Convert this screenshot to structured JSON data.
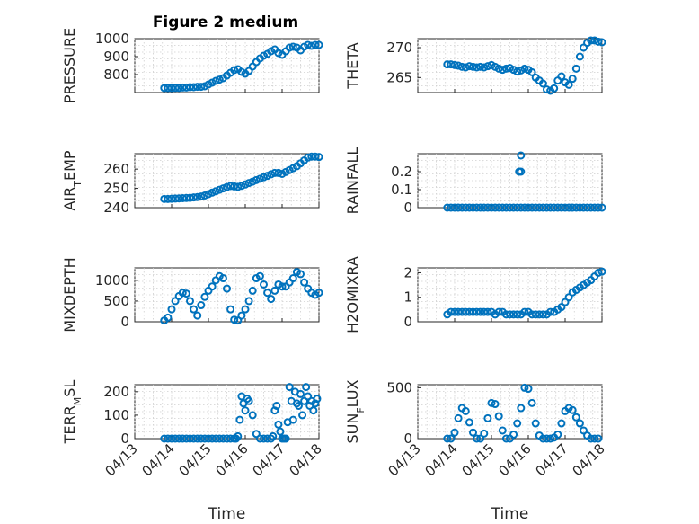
{
  "figure_title": "Figure 2 medium",
  "colors": {
    "marker": "#0072BD",
    "axis": "#262626",
    "grid": "#cfcfcf"
  },
  "chart_data": [
    {
      "id": "pressure",
      "type": "scatter",
      "ylabel": "PRESSURE",
      "ylabel_sub": "",
      "ylim": [
        700,
        1000
      ],
      "yticks": [
        800,
        900,
        1000
      ],
      "yticklabels": [
        "800",
        "900",
        "1000"
      ],
      "xlim": [
        0,
        5
      ],
      "xticks": [
        0,
        1,
        2,
        3,
        4,
        5
      ],
      "xticklabels": [],
      "x": [
        0.8,
        0.9,
        1.0,
        1.1,
        1.2,
        1.3,
        1.4,
        1.5,
        1.6,
        1.7,
        1.8,
        1.9,
        2.0,
        2.1,
        2.2,
        2.3,
        2.4,
        2.5,
        2.6,
        2.7,
        2.8,
        2.9,
        3.0,
        3.1,
        3.2,
        3.3,
        3.4,
        3.5,
        3.6,
        3.7,
        3.8,
        3.9,
        4.0,
        4.1,
        4.2,
        4.3,
        4.4,
        4.5,
        4.6,
        4.7,
        4.8,
        4.9,
        5.0
      ],
      "values": [
        725,
        725,
        725,
        726,
        726,
        728,
        728,
        730,
        730,
        732,
        732,
        735,
        745,
        755,
        765,
        772,
        780,
        795,
        810,
        825,
        830,
        815,
        805,
        820,
        845,
        870,
        890,
        905,
        915,
        930,
        940,
        920,
        910,
        930,
        950,
        955,
        950,
        935,
        955,
        965,
        960,
        965,
        965
      ]
    },
    {
      "id": "theta",
      "type": "scatter",
      "ylabel": "THETA",
      "ylabel_sub": "",
      "ylim": [
        262.5,
        271.5
      ],
      "yticks": [
        265,
        270
      ],
      "yticklabels": [
        "265",
        "270"
      ],
      "xlim": [
        0,
        5
      ],
      "xticks": [
        0,
        1,
        2,
        3,
        4,
        5
      ],
      "xticklabels": [],
      "x": [
        0.8,
        0.9,
        1.0,
        1.1,
        1.2,
        1.3,
        1.4,
        1.5,
        1.6,
        1.7,
        1.8,
        1.9,
        2.0,
        2.1,
        2.2,
        2.3,
        2.4,
        2.5,
        2.6,
        2.7,
        2.8,
        2.9,
        3.0,
        3.1,
        3.2,
        3.3,
        3.4,
        3.5,
        3.6,
        3.7,
        3.8,
        3.9,
        4.0,
        4.1,
        4.2,
        4.3,
        4.4,
        4.5,
        4.6,
        4.7,
        4.8,
        4.9,
        5.0
      ],
      "values": [
        267.2,
        267.2,
        267.1,
        267.0,
        266.8,
        266.7,
        266.9,
        266.8,
        266.7,
        266.8,
        266.7,
        266.9,
        267.1,
        266.8,
        266.5,
        266.3,
        266.5,
        266.6,
        266.3,
        266.0,
        266.2,
        266.5,
        266.3,
        265.9,
        265.0,
        264.5,
        264.0,
        263.0,
        262.8,
        263.2,
        264.5,
        265.2,
        264.2,
        263.8,
        264.8,
        266.5,
        268.5,
        270.0,
        270.8,
        271.2,
        271.2,
        271.0,
        270.9
      ]
    },
    {
      "id": "air_temp",
      "type": "scatter",
      "ylabel": "AIR",
      "ylabel_sub": "T",
      "ylabel_rest": "EMP",
      "ylim": [
        240,
        268
      ],
      "yticks": [
        240,
        250,
        260
      ],
      "yticklabels": [
        "240",
        "250",
        "260"
      ],
      "xlim": [
        0,
        5
      ],
      "xticks": [
        0,
        1,
        2,
        3,
        4,
        5
      ],
      "xticklabels": [],
      "x": [
        0.8,
        0.9,
        1.0,
        1.1,
        1.2,
        1.3,
        1.4,
        1.5,
        1.6,
        1.7,
        1.8,
        1.9,
        2.0,
        2.1,
        2.2,
        2.3,
        2.4,
        2.5,
        2.6,
        2.7,
        2.8,
        2.9,
        3.0,
        3.1,
        3.2,
        3.3,
        3.4,
        3.5,
        3.6,
        3.7,
        3.8,
        3.9,
        4.0,
        4.1,
        4.2,
        4.3,
        4.4,
        4.5,
        4.6,
        4.7,
        4.8,
        4.9,
        5.0
      ],
      "values": [
        244.5,
        244.5,
        244.6,
        244.7,
        244.8,
        244.9,
        245.0,
        245.1,
        245.3,
        245.5,
        245.8,
        246.3,
        247.0,
        247.8,
        248.5,
        249.3,
        250.0,
        250.7,
        251.2,
        251.0,
        250.8,
        251.3,
        252.0,
        252.8,
        253.5,
        254.3,
        255.0,
        255.8,
        256.5,
        257.3,
        258.0,
        258.0,
        257.5,
        258.5,
        259.5,
        260.5,
        261.5,
        263.0,
        264.5,
        266.0,
        266.5,
        266.5,
        266.3
      ]
    },
    {
      "id": "rainfall",
      "type": "scatter",
      "ylabel": "RAINFALL",
      "ylabel_sub": "",
      "ylim": [
        0,
        0.3
      ],
      "yticks": [
        0,
        0.1,
        0.2
      ],
      "yticklabels": [
        "0",
        "0.1",
        "0.2"
      ],
      "xlim": [
        0,
        5
      ],
      "xticks": [
        0,
        1,
        2,
        3,
        4,
        5
      ],
      "xticklabels": [],
      "x": [
        0.8,
        0.9,
        1.0,
        1.1,
        1.2,
        1.3,
        1.4,
        1.5,
        1.6,
        1.7,
        1.8,
        1.9,
        2.0,
        2.1,
        2.2,
        2.3,
        2.4,
        2.5,
        2.6,
        2.7,
        2.75,
        2.8,
        2.8,
        2.8,
        2.9,
        3.0,
        3.1,
        3.2,
        3.3,
        3.4,
        3.5,
        3.6,
        3.7,
        3.8,
        3.9,
        4.0,
        4.1,
        4.2,
        4.3,
        4.4,
        4.5,
        4.6,
        4.7,
        4.8,
        4.9,
        5.0
      ],
      "values": [
        0,
        0,
        0,
        0,
        0,
        0,
        0,
        0,
        0,
        0,
        0,
        0,
        0,
        0,
        0,
        0,
        0,
        0,
        0,
        0,
        0.2,
        0.2,
        0.29,
        0,
        0,
        0,
        0,
        0,
        0,
        0,
        0,
        0,
        0,
        0,
        0,
        0,
        0,
        0,
        0,
        0,
        0,
        0,
        0,
        0,
        0,
        0
      ]
    },
    {
      "id": "mixdepth",
      "type": "scatter",
      "ylabel": "MIXDEPTH",
      "ylabel_sub": "",
      "ylim": [
        0,
        1300
      ],
      "yticks": [
        0,
        500,
        1000
      ],
      "yticklabels": [
        "0",
        "500",
        "1000"
      ],
      "xlim": [
        0,
        5
      ],
      "xticks": [
        0,
        1,
        2,
        3,
        4,
        5
      ],
      "xticklabels": [],
      "x": [
        0.8,
        0.9,
        1.0,
        1.1,
        1.2,
        1.3,
        1.4,
        1.5,
        1.6,
        1.7,
        1.8,
        1.9,
        2.0,
        2.1,
        2.2,
        2.3,
        2.4,
        2.5,
        2.6,
        2.7,
        2.8,
        2.9,
        3.0,
        3.1,
        3.2,
        3.3,
        3.4,
        3.5,
        3.6,
        3.7,
        3.8,
        3.9,
        4.0,
        4.1,
        4.2,
        4.3,
        4.4,
        4.5,
        4.6,
        4.7,
        4.8,
        4.9,
        5.0
      ],
      "values": [
        30,
        100,
        300,
        500,
        620,
        700,
        680,
        500,
        300,
        150,
        400,
        600,
        750,
        850,
        1000,
        1100,
        1050,
        800,
        300,
        50,
        30,
        150,
        300,
        500,
        750,
        1050,
        1100,
        900,
        700,
        550,
        750,
        900,
        850,
        850,
        950,
        1050,
        1200,
        1150,
        950,
        800,
        700,
        650,
        700
      ]
    },
    {
      "id": "h2omixra",
      "type": "scatter",
      "ylabel": "H2OMIXRA",
      "ylabel_sub": "",
      "ylim": [
        0,
        2.2
      ],
      "yticks": [
        0,
        1,
        2
      ],
      "yticklabels": [
        "0",
        "1",
        "2"
      ],
      "xlim": [
        0,
        5
      ],
      "xticks": [
        0,
        1,
        2,
        3,
        4,
        5
      ],
      "xticklabels": [],
      "x": [
        0.8,
        0.9,
        1.0,
        1.1,
        1.2,
        1.3,
        1.4,
        1.5,
        1.6,
        1.7,
        1.8,
        1.9,
        2.0,
        2.1,
        2.2,
        2.3,
        2.4,
        2.5,
        2.6,
        2.7,
        2.8,
        2.9,
        3.0,
        3.1,
        3.2,
        3.3,
        3.4,
        3.5,
        3.6,
        3.7,
        3.8,
        3.9,
        4.0,
        4.1,
        4.2,
        4.3,
        4.4,
        4.5,
        4.6,
        4.7,
        4.8,
        4.9,
        5.0
      ],
      "values": [
        0.3,
        0.4,
        0.4,
        0.4,
        0.4,
        0.4,
        0.4,
        0.4,
        0.4,
        0.4,
        0.4,
        0.4,
        0.4,
        0.3,
        0.4,
        0.4,
        0.3,
        0.3,
        0.3,
        0.3,
        0.3,
        0.4,
        0.4,
        0.3,
        0.3,
        0.3,
        0.3,
        0.3,
        0.4,
        0.4,
        0.5,
        0.6,
        0.8,
        1.0,
        1.2,
        1.3,
        1.4,
        1.5,
        1.6,
        1.7,
        1.85,
        2.0,
        2.05
      ]
    },
    {
      "id": "terr_msl",
      "type": "scatter",
      "ylabel": "TERR",
      "ylabel_sub": "M",
      "ylabel_rest": "SL",
      "ylim": [
        0,
        230
      ],
      "yticks": [
        0,
        100,
        200
      ],
      "yticklabels": [
        "0",
        "100",
        "200"
      ],
      "xlim": [
        0,
        5
      ],
      "xticks": [
        0,
        1,
        2,
        3,
        4,
        5
      ],
      "xticklabels": [
        "04/13",
        "04/14",
        "04/15",
        "04/16",
        "04/17",
        "04/18"
      ],
      "xlabel": "Time",
      "x": [
        0.8,
        0.9,
        1.0,
        1.1,
        1.2,
        1.3,
        1.4,
        1.5,
        1.6,
        1.7,
        1.8,
        1.9,
        2.0,
        2.1,
        2.2,
        2.3,
        2.4,
        2.5,
        2.6,
        2.7,
        2.75,
        2.8,
        2.85,
        2.9,
        2.95,
        3.0,
        3.05,
        3.1,
        3.2,
        3.3,
        3.4,
        3.5,
        3.6,
        3.7,
        3.75,
        3.8,
        3.85,
        3.9,
        3.95,
        4.0,
        4.05,
        4.1,
        4.15,
        4.2,
        4.25,
        4.3,
        4.35,
        4.4,
        4.45,
        4.5,
        4.55,
        4.6,
        4.65,
        4.7,
        4.75,
        4.8,
        4.85,
        4.9,
        4.95
      ],
      "values": [
        0,
        0,
        0,
        0,
        0,
        0,
        0,
        0,
        0,
        0,
        0,
        0,
        0,
        0,
        0,
        0,
        0,
        0,
        0,
        0,
        0,
        10,
        80,
        180,
        150,
        120,
        170,
        160,
        100,
        20,
        0,
        0,
        0,
        0,
        10,
        120,
        140,
        60,
        30,
        0,
        0,
        0,
        70,
        220,
        160,
        80,
        200,
        150,
        140,
        190,
        100,
        160,
        220,
        180,
        140,
        160,
        120,
        150,
        170
      ]
    },
    {
      "id": "sun_flux",
      "type": "scatter",
      "ylabel": "SUN",
      "ylabel_sub": "F",
      "ylabel_rest": "LUX",
      "ylim": [
        0,
        530
      ],
      "yticks": [
        0,
        500
      ],
      "yticklabels": [
        "0",
        "500"
      ],
      "xlim": [
        0,
        5
      ],
      "xticks": [
        0,
        1,
        2,
        3,
        4,
        5
      ],
      "xticklabels": [
        "04/13",
        "04/14",
        "04/15",
        "04/16",
        "04/17",
        "04/18"
      ],
      "xlabel": "Time",
      "x": [
        0.8,
        0.9,
        1.0,
        1.1,
        1.2,
        1.3,
        1.4,
        1.5,
        1.6,
        1.7,
        1.8,
        1.9,
        2.0,
        2.1,
        2.2,
        2.3,
        2.4,
        2.5,
        2.6,
        2.7,
        2.8,
        2.9,
        3.0,
        3.1,
        3.2,
        3.3,
        3.4,
        3.5,
        3.6,
        3.7,
        3.8,
        3.9,
        4.0,
        4.1,
        4.2,
        4.3,
        4.4,
        4.5,
        4.6,
        4.7,
        4.8,
        4.9
      ],
      "values": [
        0,
        0,
        60,
        200,
        300,
        270,
        160,
        60,
        0,
        0,
        50,
        200,
        350,
        340,
        220,
        80,
        0,
        0,
        40,
        150,
        300,
        500,
        490,
        350,
        150,
        30,
        0,
        0,
        0,
        10,
        40,
        150,
        270,
        300,
        280,
        210,
        150,
        80,
        30,
        0,
        0,
        0
      ]
    }
  ]
}
